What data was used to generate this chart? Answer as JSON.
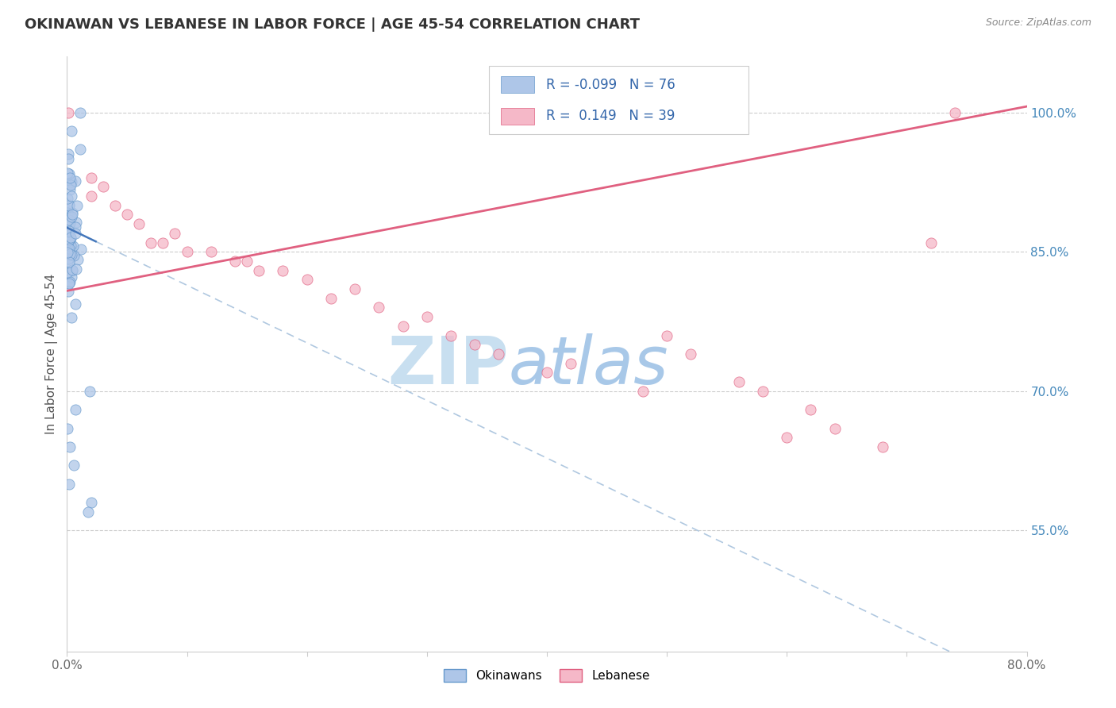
{
  "title": "OKINAWAN VS LEBANESE IN LABOR FORCE | AGE 45-54 CORRELATION CHART",
  "source_text": "Source: ZipAtlas.com",
  "ylabel": "In Labor Force | Age 45-54",
  "xlim": [
    0.0,
    0.8
  ],
  "ylim": [
    0.42,
    1.06
  ],
  "yticks_right": [
    0.55,
    0.7,
    0.85,
    1.0
  ],
  "yticklabels_right": [
    "55.0%",
    "70.0%",
    "85.0%",
    "100.0%"
  ],
  "R_okinawan": -0.099,
  "N_okinawan": 76,
  "R_lebanese": 0.149,
  "N_lebanese": 39,
  "color_okinawan": "#aec6e8",
  "color_lebanese": "#f5b8c8",
  "edge_color_okinawan": "#6699cc",
  "edge_color_lebanese": "#e06080",
  "trend_color_okinawan": "#4477bb",
  "trend_color_lebanese": "#e06080",
  "dashed_color": "#b0c8e0",
  "watermark_zip_color": "#c8dff0",
  "watermark_atlas_color": "#a8c8e8",
  "legend_label_okinawan": "Okinawans",
  "legend_label_lebanese": "Lebanese",
  "ok_intercept": 0.876,
  "ok_slope": -0.62,
  "lb_intercept": 0.808,
  "lb_slope": 0.248
}
